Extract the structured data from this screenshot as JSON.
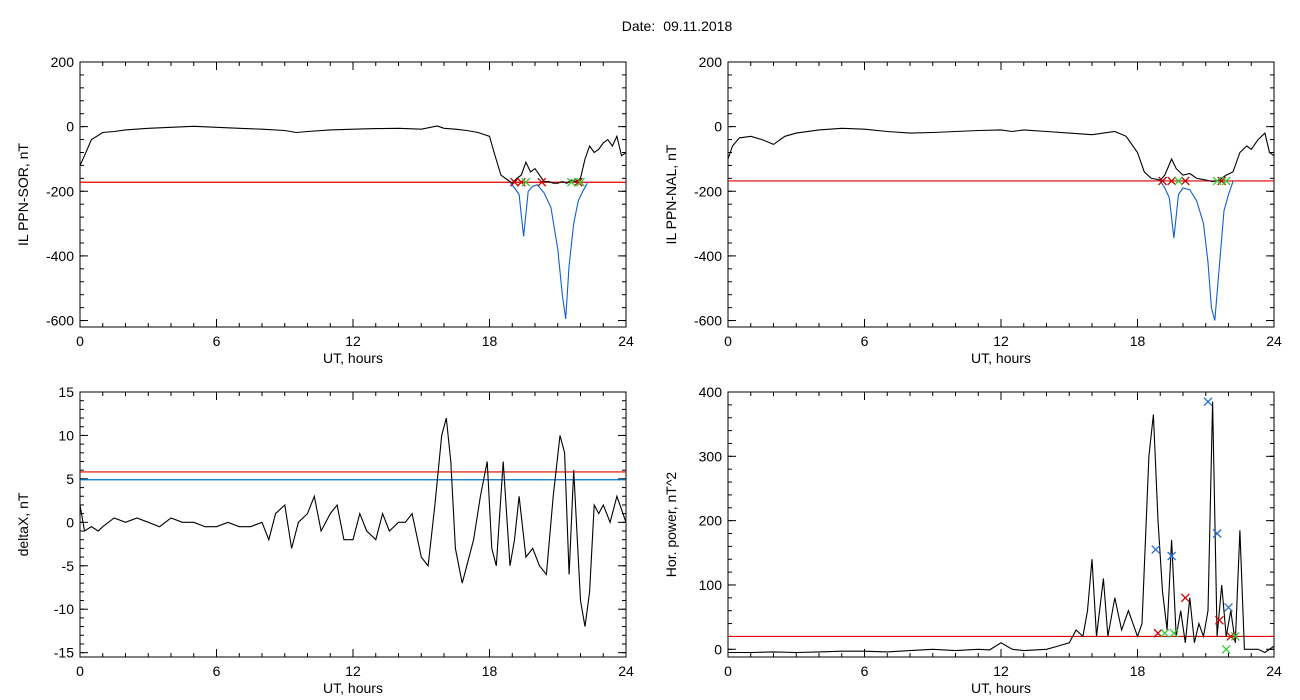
{
  "header": {
    "date_label": "Date:",
    "date_value": "09.11.2018"
  },
  "colors": {
    "axis": "#000000",
    "trace": "#000000",
    "threshold_red": "#e00000",
    "threshold_blue": "#0070c0",
    "highlight_blue": "#1060d0",
    "marker_red": "#cc0000",
    "marker_green": "#33cc33",
    "marker_blue": "#2a6fcf"
  },
  "chart_data": [
    {
      "id": "sor",
      "type": "line",
      "ylabel": "IL PPN-SOR, nT",
      "xlabel": "UT, hours",
      "xlim": [
        0,
        24
      ],
      "ylim": [
        -620,
        200
      ],
      "xticks": [
        "0",
        "6",
        "12",
        "18",
        "24"
      ],
      "yticks": [
        "200",
        "0",
        "-200",
        "-400",
        "-600"
      ],
      "thresholds": [
        {
          "color": "red",
          "y": -172
        }
      ],
      "series": [
        {
          "color": "black",
          "x": [
            0,
            0.2,
            0.5,
            1,
            1.5,
            2,
            3,
            4,
            5,
            6,
            7,
            8,
            9,
            9.5,
            10,
            11,
            12,
            13,
            14,
            15,
            15.7,
            16,
            16.5,
            17,
            17.5,
            18,
            18.2,
            18.5,
            18.8,
            19,
            19.2,
            19.4,
            19.6,
            19.8,
            20,
            20.2,
            20.4,
            20.6,
            20.8,
            21,
            21.2,
            21.4,
            21.6,
            21.8,
            22,
            22.2,
            22.4,
            22.6,
            22.8,
            23,
            23.2,
            23.4,
            23.6,
            23.8,
            24
          ],
          "y": [
            -120,
            -90,
            -40,
            -18,
            -15,
            -10,
            -5,
            -2,
            1,
            -2,
            -5,
            -8,
            -12,
            -18,
            -15,
            -10,
            -8,
            -6,
            -5,
            -8,
            2,
            -5,
            -8,
            -12,
            -18,
            -30,
            -80,
            -150,
            -165,
            -175,
            -160,
            -150,
            -110,
            -140,
            -130,
            -150,
            -170,
            -170,
            -175,
            -175,
            -170,
            -175,
            -165,
            -170,
            -160,
            -100,
            -60,
            -80,
            -70,
            -50,
            -40,
            -60,
            -30,
            -90,
            -80
          ]
        },
        {
          "color": "blue",
          "x": [
            18.9,
            19.1,
            19.3,
            19.5,
            19.7,
            19.9,
            20.1,
            20.4,
            20.7,
            21,
            21.2,
            21.35,
            21.5,
            21.7,
            21.9,
            22.1,
            22.3
          ],
          "y": [
            -172,
            -190,
            -210,
            -340,
            -200,
            -185,
            -180,
            -205,
            -250,
            -380,
            -520,
            -595,
            -430,
            -300,
            -230,
            -200,
            -175
          ]
        }
      ],
      "markers": [
        {
          "color": "red",
          "x": [
            19.1,
            19.4,
            20.3,
            21.9
          ],
          "y": [
            -172,
            -172,
            -172,
            -172
          ]
        },
        {
          "color": "green",
          "x": [
            19.6,
            21.6,
            22.0
          ],
          "y": [
            -172,
            -172,
            -172
          ]
        }
      ]
    },
    {
      "id": "nal",
      "type": "line",
      "ylabel": "IL PPN-NAL, nT",
      "xlabel": "UT, hours",
      "xlim": [
        0,
        24
      ],
      "ylim": [
        -620,
        200
      ],
      "xticks": [
        "0",
        "6",
        "12",
        "18",
        "24"
      ],
      "yticks": [
        "200",
        "0",
        "-200",
        "-400",
        "-600"
      ],
      "thresholds": [
        {
          "color": "red",
          "y": -168
        }
      ],
      "series": [
        {
          "color": "black",
          "x": [
            0,
            0.2,
            0.5,
            1,
            1.5,
            2,
            2.5,
            3,
            4,
            5,
            6,
            7,
            8,
            9,
            10,
            11,
            12,
            12.5,
            13,
            14,
            15,
            16,
            17,
            17.5,
            18,
            18.3,
            18.6,
            19,
            19.2,
            19.5,
            19.7,
            20,
            20.3,
            20.6,
            21,
            21.3,
            21.6,
            21.9,
            22.2,
            22.5,
            22.8,
            23,
            23.3,
            23.6,
            23.8,
            24
          ],
          "y": [
            -100,
            -60,
            -35,
            -30,
            -40,
            -55,
            -30,
            -20,
            -10,
            -5,
            -8,
            -15,
            -20,
            -18,
            -15,
            -12,
            -10,
            -15,
            -10,
            -15,
            -20,
            -25,
            -15,
            -30,
            -80,
            -140,
            -160,
            -165,
            -150,
            -100,
            -130,
            -150,
            -145,
            -160,
            -165,
            -170,
            -165,
            -150,
            -140,
            -80,
            -60,
            -70,
            -40,
            -20,
            -80,
            -90
          ]
        },
        {
          "color": "blue",
          "x": [
            19.0,
            19.2,
            19.4,
            19.6,
            19.8,
            20.0,
            20.3,
            20.6,
            20.9,
            21.1,
            21.25,
            21.4,
            21.6,
            21.8,
            22.0,
            22.2
          ],
          "y": [
            -168,
            -190,
            -220,
            -345,
            -210,
            -190,
            -195,
            -230,
            -300,
            -420,
            -560,
            -600,
            -430,
            -260,
            -210,
            -170
          ]
        }
      ],
      "markers": [
        {
          "color": "red",
          "x": [
            19.1,
            19.5,
            20.1,
            21.7
          ],
          "y": [
            -168,
            -168,
            -168,
            -168
          ]
        },
        {
          "color": "green",
          "x": [
            19.8,
            21.5,
            21.9
          ],
          "y": [
            -168,
            -168,
            -168
          ]
        }
      ]
    },
    {
      "id": "deltax",
      "type": "line",
      "ylabel": "deltaX, nT",
      "xlabel": "UT, hours",
      "xlim": [
        0,
        24
      ],
      "ylim": [
        -15.5,
        15
      ],
      "xticks": [
        "0",
        "6",
        "12",
        "18",
        "24"
      ],
      "yticks": [
        "15",
        "10",
        "5",
        "0",
        "-5",
        "-10",
        "-15"
      ],
      "thresholds": [
        {
          "color": "red",
          "y": 5.8
        },
        {
          "color": "blue",
          "y": 4.9
        }
      ],
      "series": [
        {
          "color": "black",
          "x": [
            0,
            0.2,
            0.5,
            0.8,
            1,
            1.5,
            2,
            2.5,
            3,
            3.5,
            4,
            4.5,
            5,
            5.5,
            6,
            6.5,
            7,
            7.5,
            8,
            8.3,
            8.6,
            9,
            9.3,
            9.6,
            10,
            10.3,
            10.6,
            11,
            11.3,
            11.6,
            12,
            12.3,
            12.6,
            13,
            13.3,
            13.6,
            14,
            14.3,
            14.6,
            15,
            15.3,
            15.6,
            15.9,
            16.1,
            16.3,
            16.5,
            16.8,
            17,
            17.3,
            17.6,
            17.9,
            18.1,
            18.3,
            18.6,
            18.9,
            19.1,
            19.3,
            19.6,
            19.9,
            20.2,
            20.5,
            20.8,
            21.1,
            21.3,
            21.5,
            21.7,
            22,
            22.2,
            22.4,
            22.6,
            22.8,
            23,
            23.3,
            23.6,
            24
          ],
          "y": [
            2,
            -1,
            -0.5,
            -1,
            -0.5,
            0.5,
            0,
            0.5,
            0,
            -0.5,
            0.5,
            0,
            0,
            -0.5,
            -0.5,
            0,
            -0.5,
            -0.5,
            0,
            -2,
            1,
            2,
            -3,
            0,
            1,
            3,
            -1,
            1,
            2,
            -2,
            -2,
            1,
            -1,
            -2,
            1,
            -1,
            0,
            0,
            1,
            -4,
            -5,
            2,
            10,
            12,
            7,
            -3,
            -7,
            -5,
            -2,
            3,
            7,
            -3,
            -5,
            7,
            -5,
            -2,
            3,
            -4,
            -3,
            -5,
            -6,
            3,
            10,
            8,
            -6,
            6,
            -9,
            -12,
            -8,
            2,
            1,
            2,
            0,
            3,
            0
          ]
        }
      ],
      "markers": []
    },
    {
      "id": "power",
      "type": "line",
      "ylabel": "Hor. power, nT^2",
      "xlabel": "UT, hours",
      "xlim": [
        0,
        24
      ],
      "ylim": [
        -12,
        400
      ],
      "xticks": [
        "0",
        "6",
        "12",
        "18",
        "24"
      ],
      "yticks": [
        "400",
        "300",
        "200",
        "100",
        "0"
      ],
      "thresholds": [
        {
          "color": "red",
          "y": 20
        }
      ],
      "series": [
        {
          "color": "black",
          "x": [
            0,
            1,
            2,
            3,
            4,
            5,
            6,
            7,
            8,
            9,
            10,
            11,
            11.5,
            12,
            12.5,
            13,
            14,
            14.5,
            15,
            15.3,
            15.6,
            15.8,
            16,
            16.2,
            16.5,
            16.7,
            17,
            17.3,
            17.6,
            18,
            18.2,
            18.5,
            18.7,
            18.9,
            19.1,
            19.3,
            19.5,
            19.7,
            19.9,
            20.1,
            20.3,
            20.5,
            20.7,
            20.9,
            21.1,
            21.3,
            21.5,
            21.7,
            21.9,
            22.1,
            22.3,
            22.5,
            22.7,
            23,
            23.3,
            23.6,
            24
          ],
          "y": [
            -5,
            -5,
            -4,
            -5,
            -4,
            -3,
            -3,
            -4,
            -2,
            0,
            -2,
            0,
            -1,
            10,
            0,
            -2,
            0,
            5,
            10,
            30,
            20,
            60,
            140,
            20,
            110,
            20,
            80,
            30,
            60,
            20,
            40,
            300,
            365,
            200,
            90,
            30,
            170,
            20,
            60,
            10,
            80,
            10,
            40,
            20,
            60,
            385,
            20,
            100,
            20,
            60,
            10,
            185,
            0,
            0,
            0,
            -5,
            5
          ]
        }
      ],
      "markers": [
        {
          "color": "blue",
          "x": [
            18.8,
            19.5,
            21.1,
            21.5,
            22.0
          ],
          "y": [
            155,
            145,
            385,
            180,
            65
          ]
        },
        {
          "color": "red",
          "x": [
            18.9,
            20.1,
            21.6,
            22.1
          ],
          "y": [
            25,
            80,
            45,
            20
          ]
        },
        {
          "color": "green",
          "x": [
            19.2,
            19.6,
            21.9,
            22.3
          ],
          "y": [
            25,
            25,
            0,
            20
          ]
        }
      ]
    }
  ]
}
